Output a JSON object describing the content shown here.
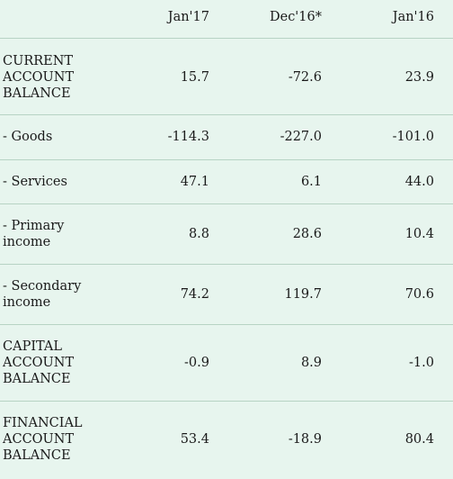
{
  "columns": [
    "Jan'17",
    "Dec'16*",
    "Jan'16"
  ],
  "rows": [
    {
      "label": "CURRENT ACCOUNT BALANCE",
      "values": [
        "15.7",
        "-72.6",
        "23.9"
      ]
    },
    {
      "label": "- Goods",
      "values": [
        "-114.3",
        "-227.0",
        "-101.0"
      ]
    },
    {
      "label": "- Services",
      "values": [
        "47.1",
        "6.1",
        "44.0"
      ]
    },
    {
      "label": "- Primary income",
      "values": [
        "8.8",
        "28.6",
        "10.4"
      ]
    },
    {
      "label": "- Secondary income",
      "values": [
        "74.2",
        "119.7",
        "70.6"
      ]
    },
    {
      "label": "CAPITAL ACCOUNT BALANCE",
      "values": [
        "-0.9",
        "8.9",
        "-1.0"
      ]
    },
    {
      "label": "FINANCIAL ACCOUNT BALANCE",
      "values": [
        "53.4",
        "-18.9",
        "80.4"
      ]
    }
  ]
}
